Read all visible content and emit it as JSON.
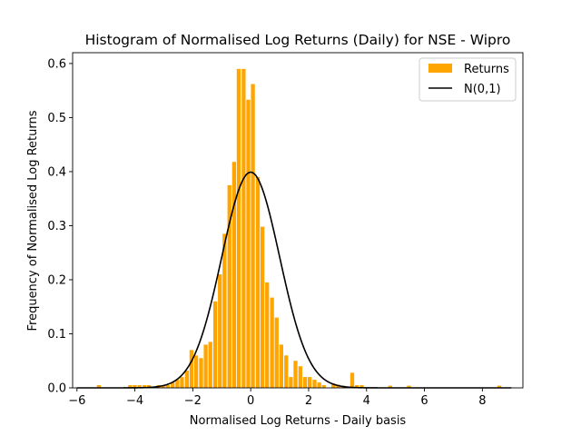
{
  "chart_data": {
    "type": "bar",
    "title": "Histogram of Normalised Log Returns (Daily) for NSE - Wipro",
    "xlabel": "Normalised Log Returns - Daily basis",
    "ylabel": "Frequency of Normalised Log Returns",
    "xlim": [
      -6.15,
      9.4
    ],
    "ylim": [
      0,
      0.62
    ],
    "xticks": [
      -6,
      -4,
      -2,
      0,
      2,
      4,
      6,
      8
    ],
    "yticks": [
      0.0,
      0.1,
      0.2,
      0.3,
      0.4,
      0.5,
      0.6
    ],
    "grid": false,
    "legend_position": "top-right",
    "bin_width": 0.163,
    "series": [
      {
        "name": "Returns",
        "kind": "histogram",
        "color": "#ffa500",
        "x": [
          -5.23,
          -4.15,
          -3.99,
          -3.83,
          -3.66,
          -3.5,
          -3.17,
          -3.01,
          -2.85,
          -2.68,
          -2.52,
          -2.36,
          -2.19,
          -2.03,
          -1.87,
          -1.7,
          -1.54,
          -1.38,
          -1.21,
          -1.05,
          -0.89,
          -0.72,
          -0.56,
          -0.4,
          -0.23,
          -0.07,
          0.09,
          0.26,
          0.42,
          0.58,
          0.75,
          0.91,
          1.07,
          1.24,
          1.4,
          1.56,
          1.73,
          1.89,
          2.05,
          2.22,
          2.38,
          2.54,
          2.87,
          3.03,
          3.2,
          3.52,
          3.68,
          3.85,
          4.83,
          5.48,
          8.6
        ],
        "values": [
          0.005,
          0.005,
          0.005,
          0.005,
          0.005,
          0.005,
          0.005,
          0.005,
          0.005,
          0.01,
          0.015,
          0.02,
          0.032,
          0.07,
          0.06,
          0.055,
          0.08,
          0.085,
          0.16,
          0.21,
          0.285,
          0.375,
          0.418,
          0.59,
          0.59,
          0.533,
          0.562,
          0.39,
          0.298,
          0.195,
          0.167,
          0.13,
          0.08,
          0.06,
          0.02,
          0.05,
          0.04,
          0.02,
          0.02,
          0.015,
          0.01,
          0.005,
          0.008,
          0.006,
          0.004,
          0.028,
          0.005,
          0.005,
          0.004,
          0.004,
          0.004
        ]
      },
      {
        "name": "N(0,1)",
        "kind": "line",
        "color": "#000000",
        "function": "standard normal density",
        "x_range": [
          -6,
          9
        ]
      }
    ]
  }
}
